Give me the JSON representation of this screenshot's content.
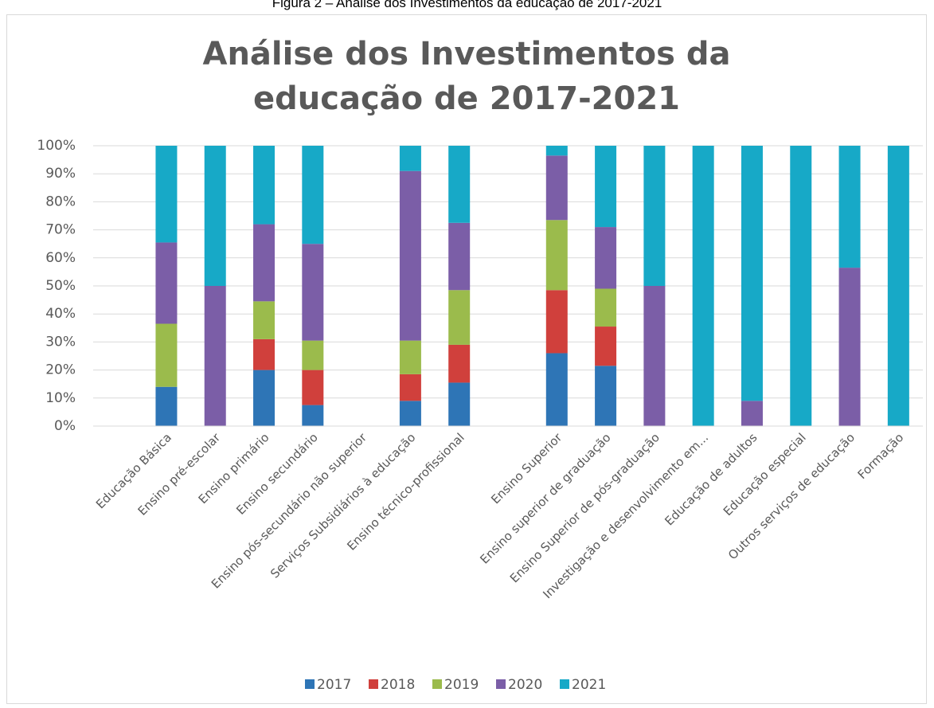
{
  "caption": "Figura 2 – Análise dos Investimentos da educação de 2017-2021",
  "chart_data": {
    "type": "stacked_bar_100",
    "title": "Análise dos Investimentos da educação de 2017-2021",
    "categories": [
      null,
      "Educação Básica",
      "Ensino pré-escolar",
      "Ensino primário",
      "Ensino secundário",
      "Ensino pós-secundário não superior",
      "Serviços Subsidiários à educação",
      "Ensino técnico-profissional",
      null,
      "Ensino Superior",
      "Ensino superior de graduação",
      "Ensino Superior de pós-graduação",
      "Investigação e desenvolvimento em...",
      "Educação de adultos",
      "Educação especial",
      "Outros serviços de educação",
      "Formação"
    ],
    "series": [
      {
        "name": "2017",
        "color": "#2e75b6",
        "values": [
          null,
          14,
          0,
          20,
          7.5,
          0,
          9,
          15.5,
          null,
          26,
          21.5,
          0,
          0,
          0,
          0,
          0,
          0
        ]
      },
      {
        "name": "2018",
        "color": "#d0403c",
        "values": [
          null,
          0,
          0,
          11,
          12.5,
          0,
          9.5,
          13.5,
          null,
          22.5,
          14,
          0,
          0,
          0,
          0,
          0,
          0
        ]
      },
      {
        "name": "2019",
        "color": "#9bbb4c",
        "values": [
          null,
          22.5,
          0,
          13.5,
          10.5,
          0,
          12,
          19.5,
          null,
          25,
          13.5,
          0,
          0,
          0,
          0,
          0,
          0
        ]
      },
      {
        "name": "2020",
        "color": "#7b5ea7",
        "values": [
          null,
          29,
          50,
          27.5,
          34.5,
          0,
          60.5,
          24,
          null,
          23,
          22,
          50,
          0,
          9,
          0,
          56.5,
          0
        ]
      },
      {
        "name": "2021",
        "color": "#17a9c7",
        "values": [
          null,
          34.5,
          50,
          28,
          35,
          0,
          9,
          27.5,
          null,
          3.5,
          29,
          50,
          100,
          91,
          100,
          43.5,
          100
        ]
      }
    ],
    "ylim": [
      0,
      100
    ],
    "yticks": [
      {
        "value": 0,
        "label": "0%"
      },
      {
        "value": 10,
        "label": "10%"
      },
      {
        "value": 20,
        "label": "20%"
      },
      {
        "value": 30,
        "label": "30%"
      },
      {
        "value": 40,
        "label": "40%"
      },
      {
        "value": 50,
        "label": "50%"
      },
      {
        "value": 60,
        "label": "60%"
      },
      {
        "value": 70,
        "label": "70%"
      },
      {
        "value": 80,
        "label": "80%"
      },
      {
        "value": 90,
        "label": "90%"
      },
      {
        "value": 100,
        "label": "100%"
      }
    ],
    "grid": true,
    "legend": "bottom"
  }
}
